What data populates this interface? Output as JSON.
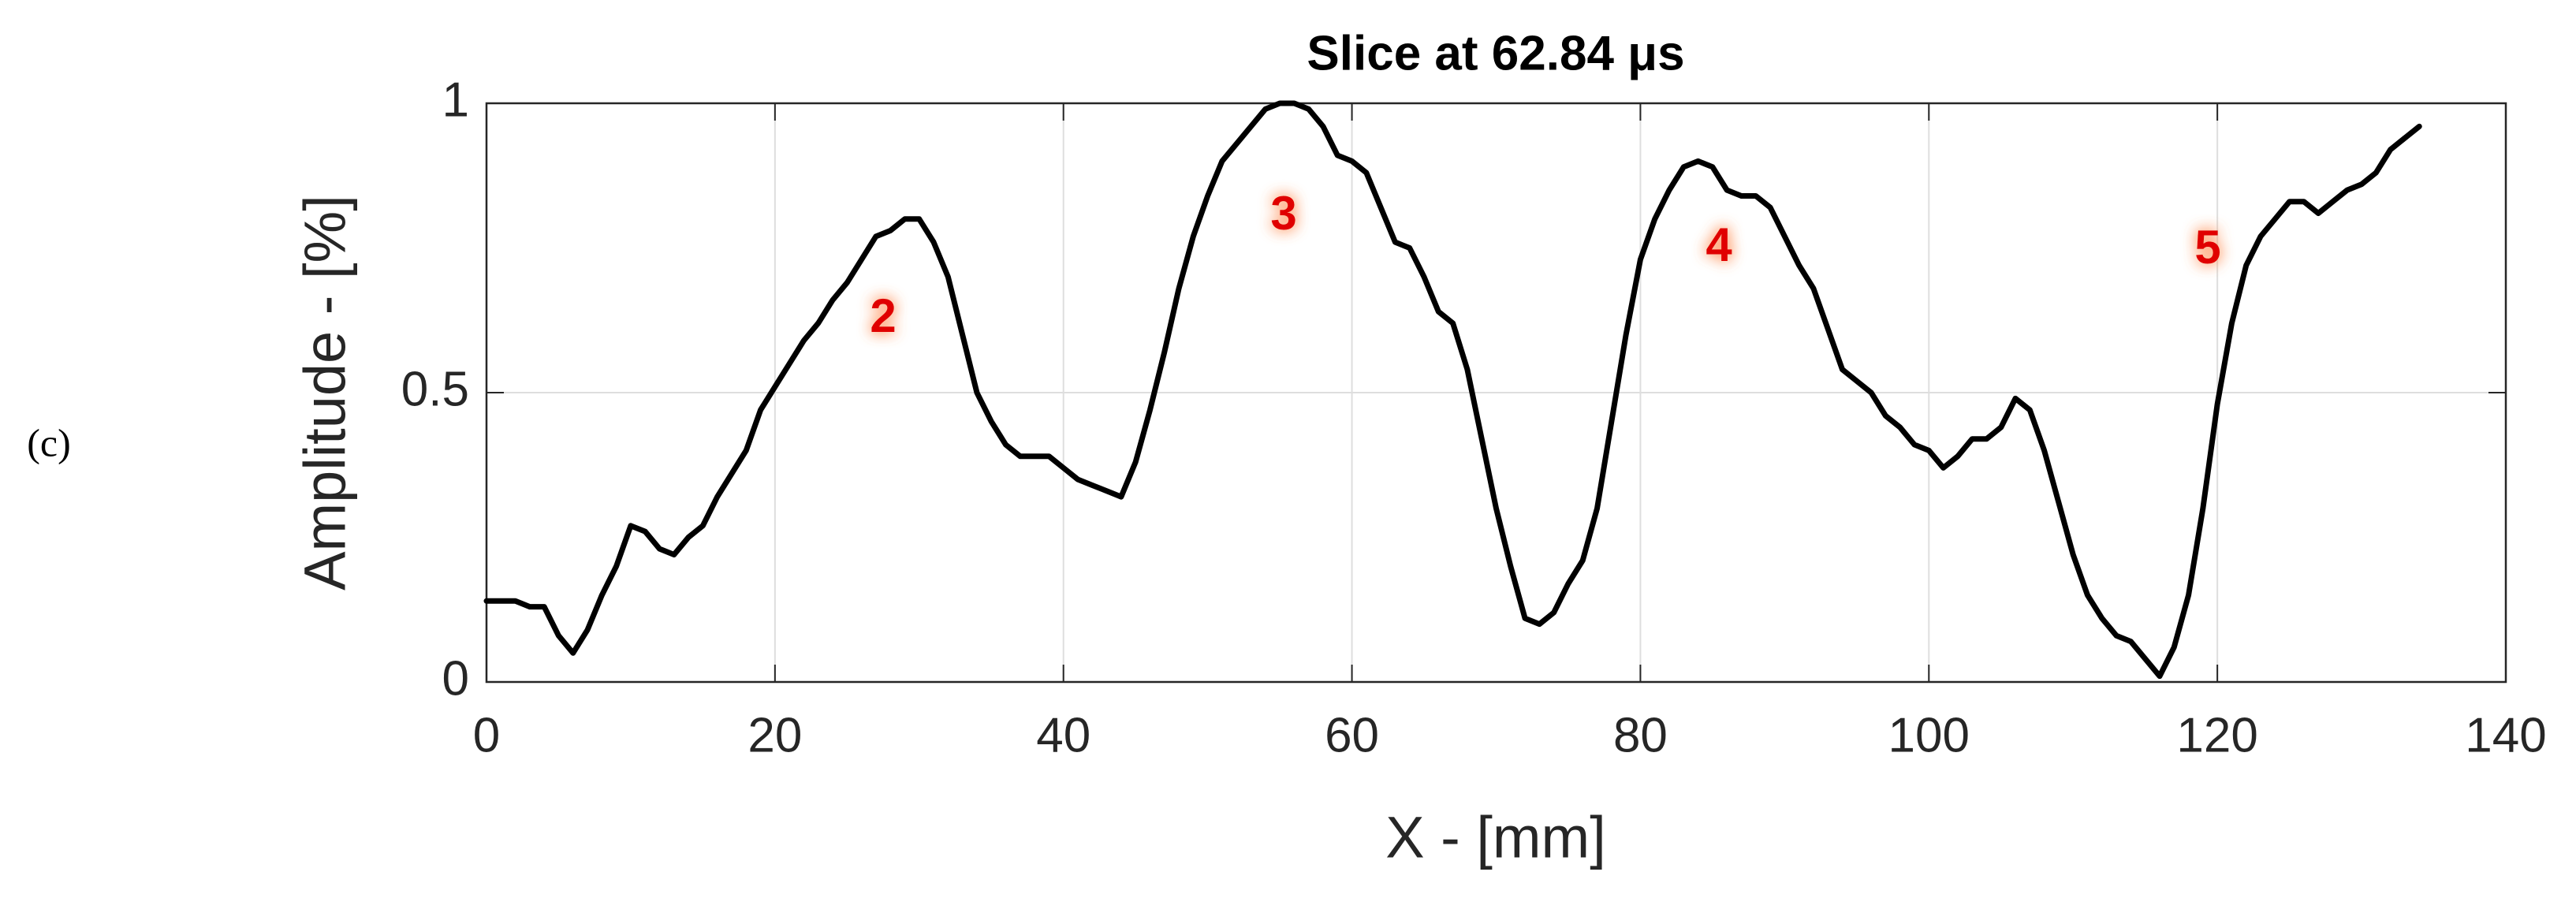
{
  "chart_data": {
    "type": "line",
    "title": "Slice at 62.84 μs",
    "panel_label": "(c)",
    "xlabel": "X - [mm]",
    "ylabel": "Amplitude - [%]",
    "annotations": [
      "2",
      "3",
      "4",
      "5"
    ],
    "x": [
      0,
      1,
      2,
      3,
      4,
      5,
      6,
      7,
      8,
      9,
      10,
      11,
      12,
      13,
      14,
      15,
      16,
      17,
      18,
      19,
      20,
      21,
      22,
      23,
      24,
      25,
      26,
      27,
      28,
      29,
      30,
      31,
      32,
      33,
      34,
      35,
      36,
      37,
      38,
      39,
      40,
      41,
      42,
      43,
      44,
      45,
      46,
      47,
      48,
      49,
      50,
      51,
      52,
      53,
      54,
      55,
      56,
      57,
      58,
      59,
      60,
      61,
      62,
      63,
      64,
      65,
      66,
      67,
      68,
      69,
      70,
      71,
      72,
      73,
      74,
      75,
      76,
      77,
      78,
      79,
      80,
      81,
      82,
      83,
      84,
      85,
      86,
      87,
      88,
      89,
      90,
      91,
      92,
      93,
      94,
      95,
      96,
      97,
      98,
      99,
      100,
      101,
      102,
      103,
      104,
      105,
      106,
      107,
      108,
      109,
      110,
      111,
      112,
      113,
      114,
      115,
      116,
      117,
      118,
      119,
      120,
      121,
      122,
      123,
      124,
      125,
      126,
      127,
      128,
      129,
      130,
      131,
      132,
      133,
      134
    ],
    "values": [
      0.14,
      0.14,
      0.14,
      0.13,
      0.13,
      0.08,
      0.05,
      0.09,
      0.15,
      0.2,
      0.27,
      0.26,
      0.23,
      0.22,
      0.25,
      0.27,
      0.32,
      0.36,
      0.4,
      0.47,
      0.51,
      0.55,
      0.59,
      0.62,
      0.66,
      0.69,
      0.73,
      0.77,
      0.78,
      0.8,
      0.8,
      0.76,
      0.7,
      0.6,
      0.5,
      0.45,
      0.41,
      0.39,
      0.39,
      0.39,
      0.37,
      0.35,
      0.34,
      0.33,
      0.32,
      0.38,
      0.47,
      0.57,
      0.68,
      0.77,
      0.84,
      0.9,
      0.93,
      0.96,
      0.99,
      1.0,
      1.0,
      0.99,
      0.96,
      0.91,
      0.9,
      0.88,
      0.82,
      0.76,
      0.75,
      0.7,
      0.64,
      0.62,
      0.54,
      0.42,
      0.3,
      0.2,
      0.11,
      0.1,
      0.12,
      0.17,
      0.21,
      0.3,
      0.45,
      0.6,
      0.73,
      0.8,
      0.85,
      0.89,
      0.9,
      0.89,
      0.85,
      0.84,
      0.84,
      0.82,
      0.77,
      0.72,
      0.68,
      0.61,
      0.54,
      0.52,
      0.5,
      0.46,
      0.44,
      0.41,
      0.4,
      0.37,
      0.39,
      0.42,
      0.42,
      0.44,
      0.49,
      0.47,
      0.4,
      0.31,
      0.22,
      0.15,
      0.11,
      0.08,
      0.07,
      0.04,
      0.01,
      0.06,
      0.15,
      0.3,
      0.48,
      0.62,
      0.72,
      0.77,
      0.8,
      0.83,
      0.83,
      0.81,
      0.83,
      0.85,
      0.86,
      0.88,
      0.92,
      0.94,
      0.96
    ],
    "color": "#000000",
    "xlim": [
      0,
      140
    ],
    "ylim": [
      0,
      1
    ],
    "xticks": [
      0,
      20,
      40,
      60,
      80,
      100,
      120,
      140
    ],
    "yticks": [
      0,
      0.5,
      1
    ],
    "grid": true
  }
}
